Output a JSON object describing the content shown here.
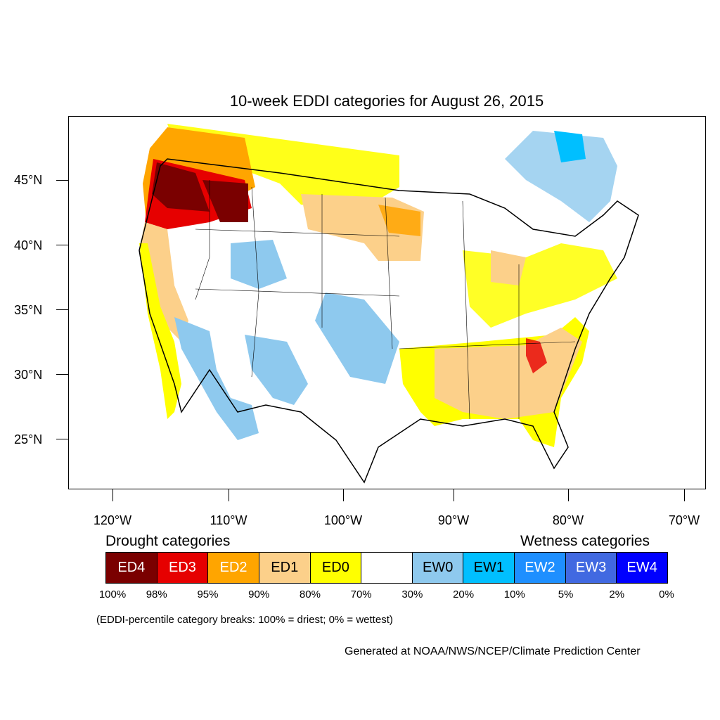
{
  "title": "10-week EDDI categories for August 26, 2015",
  "map": {
    "y_axis_labels": [
      "45°N",
      "40°N",
      "35°N",
      "30°N",
      "25°N"
    ],
    "x_axis_labels": [
      "120°W",
      "110°W",
      "100°W",
      "90°W",
      "80°W",
      "70°W"
    ],
    "category_colors": {
      "ED4": "#7a0000",
      "ED3": "#e60000",
      "ED2": "#ffa500",
      "ED1": "#fcd08a",
      "ED0": "#ffff00",
      "neutral": "#ffffff",
      "EW0": "#8ec9ee",
      "EW1": "#00bfff",
      "EW2": "#1e8fff",
      "EW3": "#4169e1",
      "EW4": "#0000ff"
    }
  },
  "legend": {
    "drought_heading": "Drought categories",
    "wetness_heading": "Wetness categories",
    "categories": [
      {
        "label": "ED4",
        "color": "#7a0000",
        "text_color": "#ffffff"
      },
      {
        "label": "ED3",
        "color": "#e60000",
        "text_color": "#ffffff"
      },
      {
        "label": "ED2",
        "color": "#ffa500",
        "text_color": "#ffffff"
      },
      {
        "label": "ED1",
        "color": "#fcd08a",
        "text_color": "#000000"
      },
      {
        "label": "ED0",
        "color": "#ffff00",
        "text_color": "#000000"
      },
      {
        "label": "",
        "color": "#ffffff",
        "text_color": "#000000"
      },
      {
        "label": "EW0",
        "color": "#8ec9ee",
        "text_color": "#000000"
      },
      {
        "label": "EW1",
        "color": "#00bfff",
        "text_color": "#000000"
      },
      {
        "label": "EW2",
        "color": "#1e8fff",
        "text_color": "#ffffff"
      },
      {
        "label": "EW3",
        "color": "#4169e1",
        "text_color": "#ffffff"
      },
      {
        "label": "EW4",
        "color": "#0000ff",
        "text_color": "#ffffff"
      }
    ],
    "percent_breaks": [
      "100%",
      "98%",
      "95%",
      "90%",
      "80%",
      "70%",
      "30%",
      "20%",
      "10%",
      "5%",
      "2%",
      "0%"
    ]
  },
  "note": "(EDDI-percentile category breaks: 100% = driest; 0% = wettest)",
  "credit": "Generated at NOAA/NWS/NCEP/Climate Prediction Center"
}
